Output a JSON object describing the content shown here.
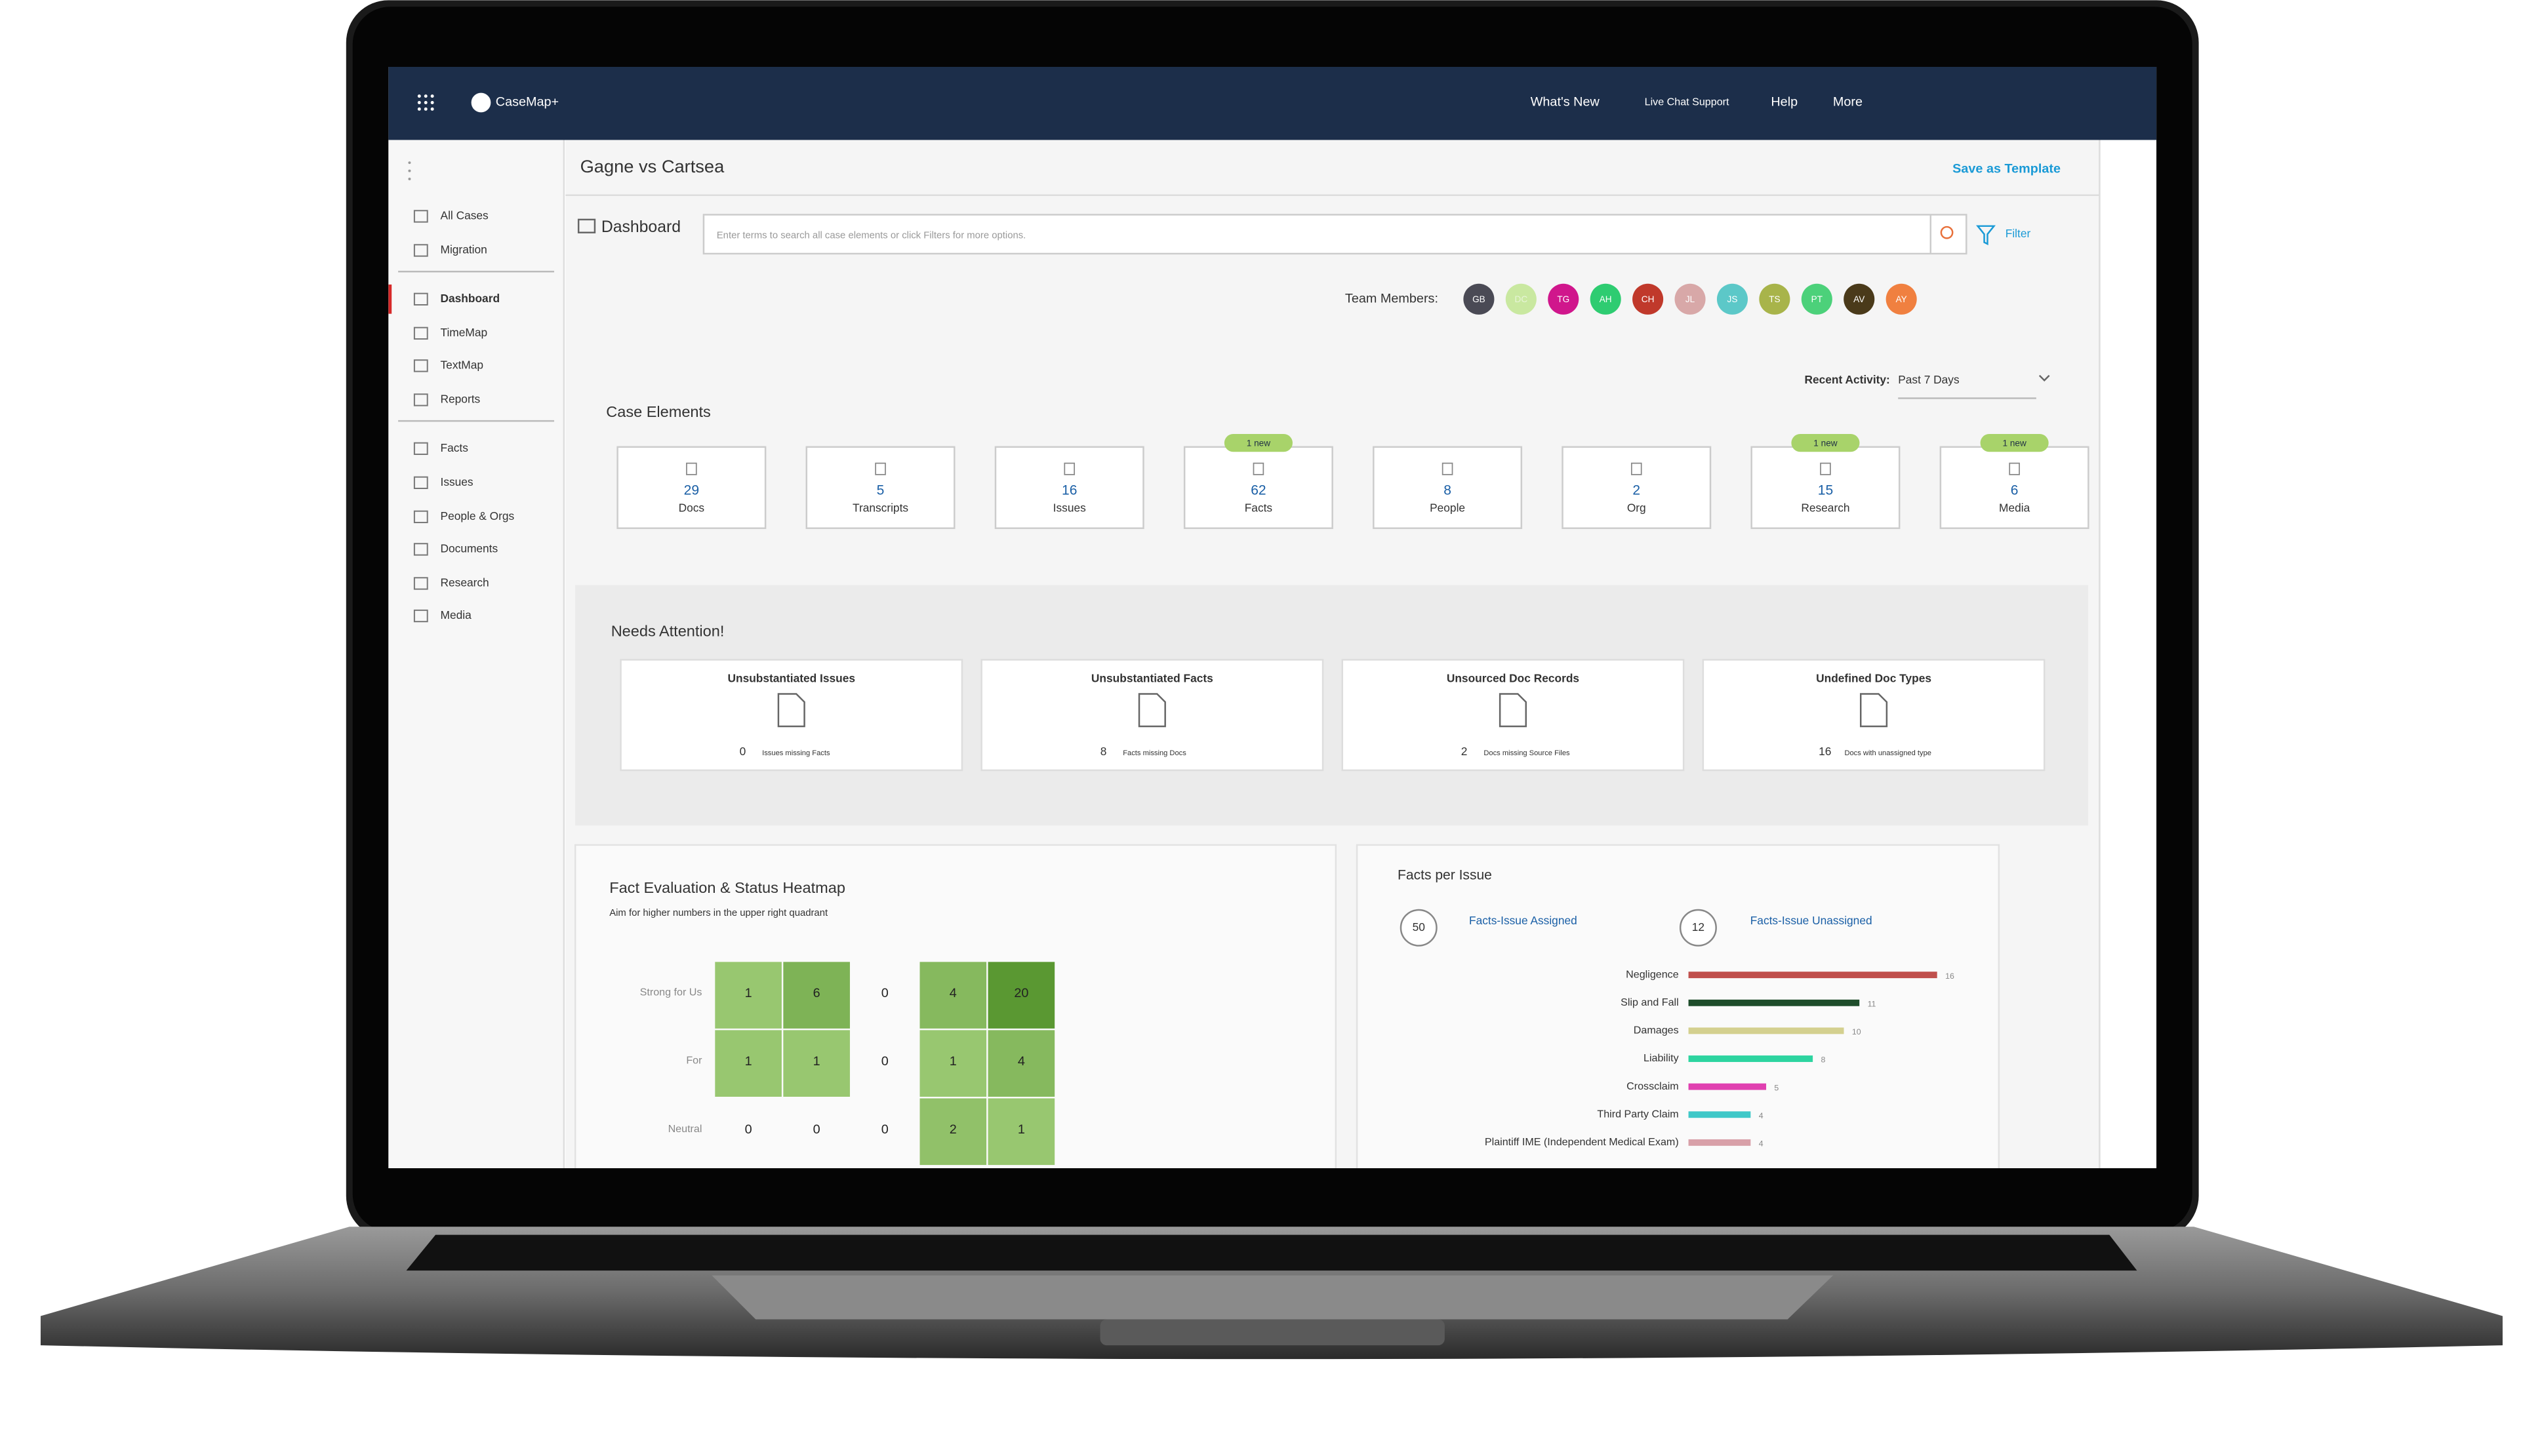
{
  "app": {
    "brand": "CaseMap+",
    "nav": [
      "What's New",
      "Live Chat Support",
      "Help",
      "More"
    ]
  },
  "sidebar": {
    "groups": [
      [
        "All Cases",
        "Migration"
      ],
      [
        "Dashboard",
        "TimeMap",
        "TextMap",
        "Reports"
      ],
      [
        "Facts",
        "Issues",
        "People & Orgs",
        "Documents",
        "Research",
        "Media"
      ]
    ]
  },
  "header": {
    "title": "Gagne vs Cartsea",
    "action": "Save as Template"
  },
  "toolbar": {
    "label": "Dashboard",
    "search_placeholder": "Enter terms to search all case elements or click Filters for more options.",
    "filter": "Filter"
  },
  "team": {
    "label": "Team Members:",
    "members": [
      {
        "initials": "GB",
        "color": "#4a4a55"
      },
      {
        "initials": "DC",
        "color": "#c9e8a0"
      },
      {
        "initials": "TG",
        "color": "#d0168c"
      },
      {
        "initials": "AH",
        "color": "#2ecc71"
      },
      {
        "initials": "CH",
        "color": "#c0392b"
      },
      {
        "initials": "JL",
        "color": "#d8a8a8"
      },
      {
        "initials": "JS",
        "color": "#5cc8c8"
      },
      {
        "initials": "TS",
        "color": "#a8b44a"
      },
      {
        "initials": "PT",
        "color": "#4cd17a"
      },
      {
        "initials": "AV",
        "color": "#4a3a1a"
      },
      {
        "initials": "AY",
        "color": "#f08040"
      }
    ]
  },
  "recent_activity": {
    "label": "Recent Activity:",
    "value": "Past 7 Days"
  },
  "case_elements": {
    "title": "Case Elements",
    "items": [
      {
        "count": 29,
        "label": "Docs"
      },
      {
        "count": 5,
        "label": "Transcripts"
      },
      {
        "count": 16,
        "label": "Issues"
      },
      {
        "count": 62,
        "label": "Facts",
        "badge": "1 new"
      },
      {
        "count": 8,
        "label": "People"
      },
      {
        "count": 2,
        "label": "Org"
      },
      {
        "count": 15,
        "label": "Research",
        "badge": "1 new"
      },
      {
        "count": 6,
        "label": "Media",
        "badge": "1 new"
      }
    ]
  },
  "needs_attention": {
    "title": "Needs Attention!",
    "cards": [
      {
        "title": "Unsubstantiated Issues",
        "count": 0,
        "note": "Issues missing Facts"
      },
      {
        "title": "Unsubstantiated Facts",
        "count": 8,
        "note": "Facts missing Docs"
      },
      {
        "title": "Unsourced Doc Records",
        "count": 2,
        "note": "Docs missing Source Files"
      },
      {
        "title": "Undefined Doc Types",
        "count": 16,
        "note": "Docs with unassigned type"
      }
    ]
  },
  "heatmap": {
    "title": "Fact Evaluation & Status Heatmap",
    "subtitle": "Aim for higher numbers in the upper right quadrant",
    "rows": [
      "Strong for Us",
      "For",
      "Neutral"
    ],
    "cells": [
      [
        1,
        6,
        0,
        4,
        20
      ],
      [
        1,
        1,
        0,
        1,
        4
      ],
      [
        0,
        0,
        0,
        2,
        1
      ]
    ]
  },
  "facts_per_issue": {
    "title": "Facts per Issue",
    "assigned": {
      "count": 50,
      "label": "Facts-Issue Assigned"
    },
    "unassigned": {
      "count": 12,
      "label": "Facts-Issue Unassigned"
    },
    "chart_data": {
      "type": "bar",
      "categories": [
        "Negligence",
        "Slip and Fall",
        "Damages",
        "Liability",
        "Crossclaim",
        "Third Party Claim",
        "Plaintiff IME (Independent Medical Exam)"
      ],
      "values": [
        16,
        11,
        10,
        8,
        5,
        4,
        4
      ],
      "colors": [
        "#c0504d",
        "#1e4d2b",
        "#d4d08f",
        "#2dd4a0",
        "#e040b0",
        "#40c8c8",
        "#d8a0a8"
      ]
    }
  }
}
